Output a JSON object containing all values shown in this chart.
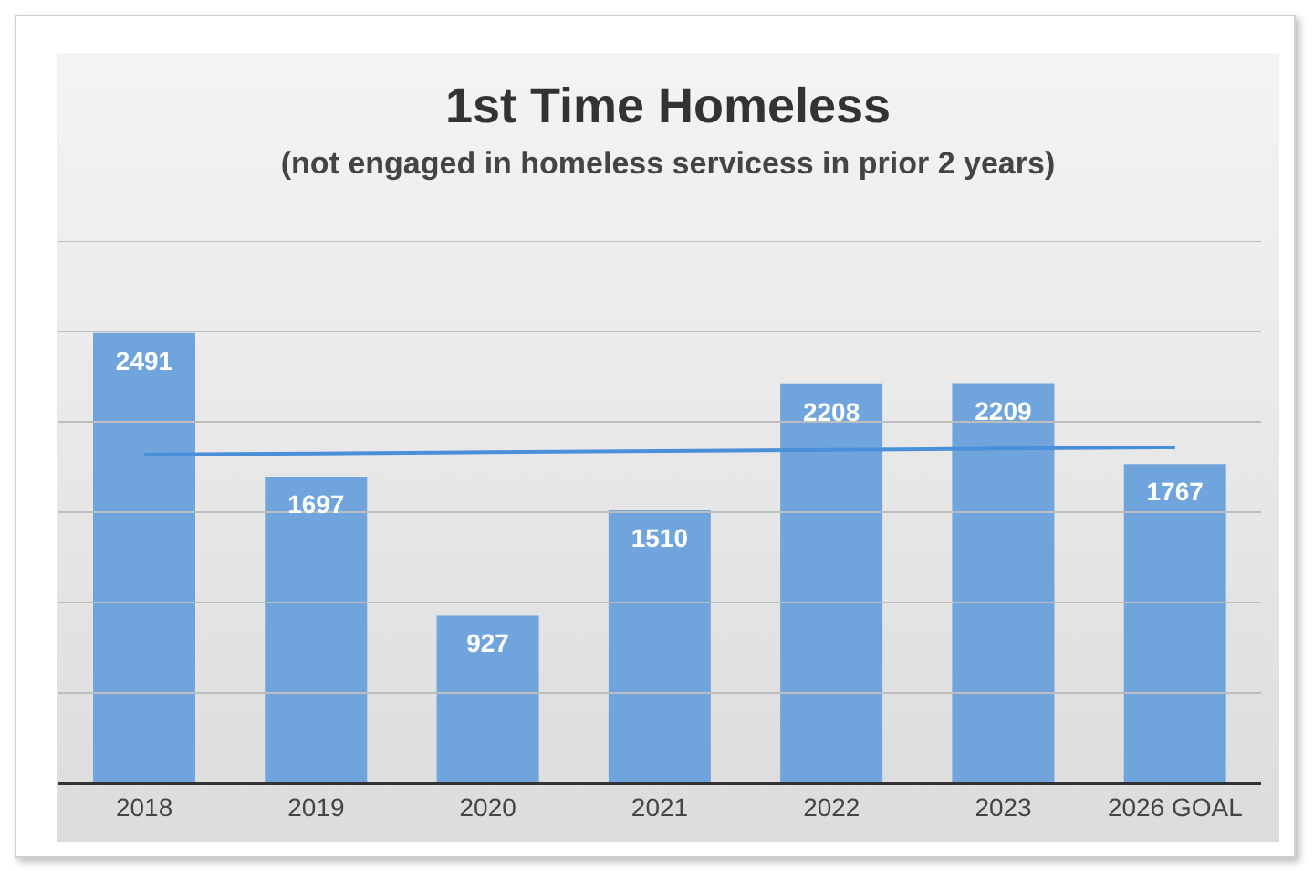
{
  "chart_data": {
    "type": "bar",
    "title": "1st Time Homeless",
    "subtitle": "(not engaged in homeless servicess in prior 2 years)",
    "categories": [
      "2018",
      "2019",
      "2020",
      "2021",
      "2022",
      "2023",
      "2026 GOAL"
    ],
    "series": [
      {
        "color": "#6fa5dc",
        "values": [
          2491,
          1697,
          927,
          1510,
          2208,
          2209,
          1767
        ],
        "value_labels": [
          "2491",
          "1697",
          "927",
          "1510",
          "2208",
          "2209",
          "1767"
        ]
      },
      {
        "type": "line",
        "color": "#4a90d9",
        "values": [
          1818,
          1825,
          1832,
          1838,
          1845,
          1852,
          1859
        ]
      }
    ],
    "ylim": [
      0,
      3000
    ],
    "yticks": [
      {
        "value": 0,
        "label": null
      },
      {
        "value": 500,
        "label": null
      },
      {
        "value": 1000,
        "label": null
      },
      {
        "value": 1500,
        "label": null
      },
      {
        "value": 2000,
        "label": null
      },
      {
        "value": 2500,
        "label": null
      },
      {
        "value": 3000,
        "label": null
      }
    ],
    "tick_labels": "x",
    "grid": "y"
  }
}
